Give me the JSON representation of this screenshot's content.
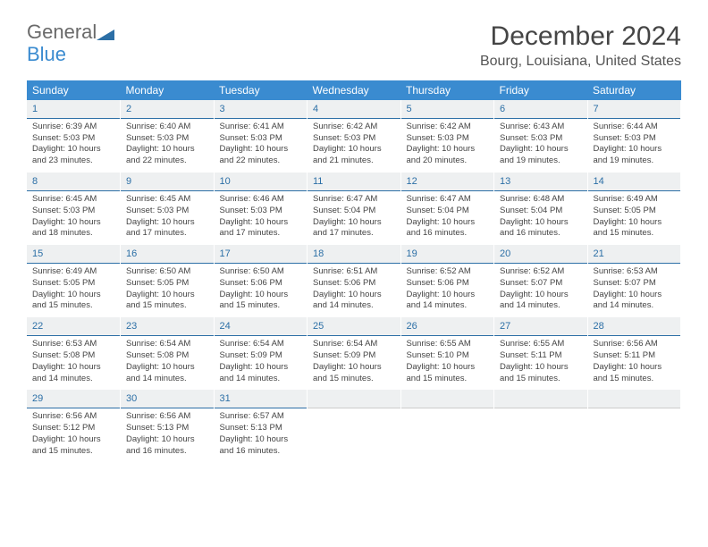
{
  "logo": {
    "general": "General",
    "blue": "Blue"
  },
  "title": "December 2024",
  "location": "Bourg, Louisiana, United States",
  "colors": {
    "header_bg": "#3a8bd0",
    "header_fg": "#ffffff",
    "daynum_bg": "#eef0f1",
    "daynum_fg": "#2c6fa6",
    "daynum_border": "#2c6fa6",
    "body_text": "#444444",
    "page_bg": "#ffffff"
  },
  "typography": {
    "title_fontsize": 30,
    "location_fontsize": 16,
    "day_header_fontsize": 12,
    "daynum_fontsize": 11,
    "cell_fontsize": 9.5
  },
  "day_headers": [
    "Sunday",
    "Monday",
    "Tuesday",
    "Wednesday",
    "Thursday",
    "Friday",
    "Saturday"
  ],
  "weeks": [
    [
      {
        "n": "1",
        "sr": "6:39 AM",
        "ss": "5:03 PM",
        "dl": "10 hours and 23 minutes."
      },
      {
        "n": "2",
        "sr": "6:40 AM",
        "ss": "5:03 PM",
        "dl": "10 hours and 22 minutes."
      },
      {
        "n": "3",
        "sr": "6:41 AM",
        "ss": "5:03 PM",
        "dl": "10 hours and 22 minutes."
      },
      {
        "n": "4",
        "sr": "6:42 AM",
        "ss": "5:03 PM",
        "dl": "10 hours and 21 minutes."
      },
      {
        "n": "5",
        "sr": "6:42 AM",
        "ss": "5:03 PM",
        "dl": "10 hours and 20 minutes."
      },
      {
        "n": "6",
        "sr": "6:43 AM",
        "ss": "5:03 PM",
        "dl": "10 hours and 19 minutes."
      },
      {
        "n": "7",
        "sr": "6:44 AM",
        "ss": "5:03 PM",
        "dl": "10 hours and 19 minutes."
      }
    ],
    [
      {
        "n": "8",
        "sr": "6:45 AM",
        "ss": "5:03 PM",
        "dl": "10 hours and 18 minutes."
      },
      {
        "n": "9",
        "sr": "6:45 AM",
        "ss": "5:03 PM",
        "dl": "10 hours and 17 minutes."
      },
      {
        "n": "10",
        "sr": "6:46 AM",
        "ss": "5:03 PM",
        "dl": "10 hours and 17 minutes."
      },
      {
        "n": "11",
        "sr": "6:47 AM",
        "ss": "5:04 PM",
        "dl": "10 hours and 17 minutes."
      },
      {
        "n": "12",
        "sr": "6:47 AM",
        "ss": "5:04 PM",
        "dl": "10 hours and 16 minutes."
      },
      {
        "n": "13",
        "sr": "6:48 AM",
        "ss": "5:04 PM",
        "dl": "10 hours and 16 minutes."
      },
      {
        "n": "14",
        "sr": "6:49 AM",
        "ss": "5:05 PM",
        "dl": "10 hours and 15 minutes."
      }
    ],
    [
      {
        "n": "15",
        "sr": "6:49 AM",
        "ss": "5:05 PM",
        "dl": "10 hours and 15 minutes."
      },
      {
        "n": "16",
        "sr": "6:50 AM",
        "ss": "5:05 PM",
        "dl": "10 hours and 15 minutes."
      },
      {
        "n": "17",
        "sr": "6:50 AM",
        "ss": "5:06 PM",
        "dl": "10 hours and 15 minutes."
      },
      {
        "n": "18",
        "sr": "6:51 AM",
        "ss": "5:06 PM",
        "dl": "10 hours and 14 minutes."
      },
      {
        "n": "19",
        "sr": "6:52 AM",
        "ss": "5:06 PM",
        "dl": "10 hours and 14 minutes."
      },
      {
        "n": "20",
        "sr": "6:52 AM",
        "ss": "5:07 PM",
        "dl": "10 hours and 14 minutes."
      },
      {
        "n": "21",
        "sr": "6:53 AM",
        "ss": "5:07 PM",
        "dl": "10 hours and 14 minutes."
      }
    ],
    [
      {
        "n": "22",
        "sr": "6:53 AM",
        "ss": "5:08 PM",
        "dl": "10 hours and 14 minutes."
      },
      {
        "n": "23",
        "sr": "6:54 AM",
        "ss": "5:08 PM",
        "dl": "10 hours and 14 minutes."
      },
      {
        "n": "24",
        "sr": "6:54 AM",
        "ss": "5:09 PM",
        "dl": "10 hours and 14 minutes."
      },
      {
        "n": "25",
        "sr": "6:54 AM",
        "ss": "5:09 PM",
        "dl": "10 hours and 15 minutes."
      },
      {
        "n": "26",
        "sr": "6:55 AM",
        "ss": "5:10 PM",
        "dl": "10 hours and 15 minutes."
      },
      {
        "n": "27",
        "sr": "6:55 AM",
        "ss": "5:11 PM",
        "dl": "10 hours and 15 minutes."
      },
      {
        "n": "28",
        "sr": "6:56 AM",
        "ss": "5:11 PM",
        "dl": "10 hours and 15 minutes."
      }
    ],
    [
      {
        "n": "29",
        "sr": "6:56 AM",
        "ss": "5:12 PM",
        "dl": "10 hours and 15 minutes."
      },
      {
        "n": "30",
        "sr": "6:56 AM",
        "ss": "5:13 PM",
        "dl": "10 hours and 16 minutes."
      },
      {
        "n": "31",
        "sr": "6:57 AM",
        "ss": "5:13 PM",
        "dl": "10 hours and 16 minutes."
      },
      null,
      null,
      null,
      null
    ]
  ],
  "labels": {
    "sunrise_prefix": "Sunrise: ",
    "sunset_prefix": "Sunset: ",
    "daylight_prefix": "Daylight: "
  }
}
